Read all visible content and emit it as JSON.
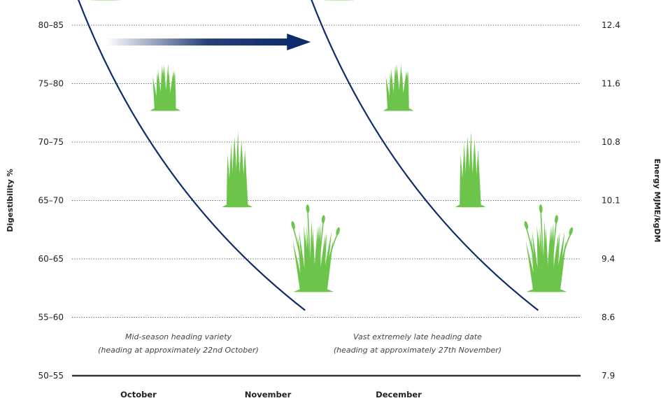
{
  "chart_data": {
    "type": "line",
    "ylabel": "Digestibility %",
    "y2label": "Energy MJME/kgDM",
    "y_ticks": [
      "50–55",
      "55–60",
      "60–65",
      "65–70",
      "70–75",
      "75–80",
      "80–85"
    ],
    "y2_ticks": [
      "7.9",
      "8.6",
      "9.4",
      "10.1",
      "10.8",
      "11.6",
      "12.4"
    ],
    "x_ticks": [
      "October",
      "November",
      "December"
    ],
    "grid": true,
    "series": [
      {
        "label": "Mid-season heading variety",
        "sublabel": "(heading at approximately 22nd October)",
        "color": "#0d2c6b",
        "points": [
          [
            0,
            6.5
          ],
          [
            2.75,
            1.0
          ]
        ]
      },
      {
        "label": "Vast extremely late heading date",
        "sublabel": "(heading at approximately 27th November)",
        "color": "#0d2c6b",
        "points": [
          [
            2.75,
            6.5
          ],
          [
            5.5,
            1.0
          ]
        ]
      }
    ],
    "arrow": {
      "from": [
        0.4,
        5.7
      ],
      "to": [
        2.75,
        5.7
      ],
      "color": "#0d2c6b"
    },
    "grass_color": "#6cc54a",
    "grass_stages": [
      {
        "x": 0.4,
        "y": 6.5,
        "stage": 1
      },
      {
        "x": 1.1,
        "y": 4.75,
        "stage": 2
      },
      {
        "x": 1.95,
        "y": 3.1,
        "stage": 3
      },
      {
        "x": 2.85,
        "y": 1.65,
        "stage": 4
      },
      {
        "x": 3.15,
        "y": 6.5,
        "stage": 1
      },
      {
        "x": 3.85,
        "y": 4.75,
        "stage": 2
      },
      {
        "x": 4.7,
        "y": 3.1,
        "stage": 3
      },
      {
        "x": 5.6,
        "y": 1.65,
        "stage": 4
      }
    ]
  }
}
